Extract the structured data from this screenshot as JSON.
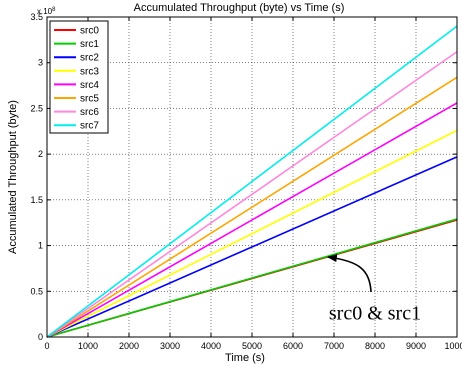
{
  "chart_data": {
    "type": "line",
    "title": "Accumulated Throughput (byte) vs Time (s)",
    "xlabel": "Time (s)",
    "ylabel": "Accumulated Throughput (byte)",
    "xlim": [
      0,
      10000
    ],
    "ylim": [
      0,
      3.5
    ],
    "y_exponent_label": "x 10",
    "y_exponent_power": "8",
    "x_ticks": [
      0,
      1000,
      2000,
      3000,
      4000,
      5000,
      6000,
      7000,
      8000,
      9000,
      10000
    ],
    "x_tick_labels": [
      "0",
      "1000",
      "2000",
      "3000",
      "4000",
      "5000",
      "6000",
      "7000",
      "8000",
      "9000",
      "10000"
    ],
    "y_ticks": [
      0,
      0.5,
      1,
      1.5,
      2,
      2.5,
      3,
      3.5
    ],
    "y_tick_labels": [
      "0",
      "0.5",
      "1",
      "1.5",
      "2",
      "2.5",
      "3",
      "3.5"
    ],
    "grid": true,
    "legend_position": "top-left",
    "series": [
      {
        "name": "src0",
        "color": "#ff0000",
        "x": [
          0,
          10000
        ],
        "y": [
          0,
          1.28
        ]
      },
      {
        "name": "src1",
        "color": "#00cc00",
        "x": [
          0,
          10000
        ],
        "y": [
          0,
          1.29
        ]
      },
      {
        "name": "src2",
        "color": "#0000ff",
        "x": [
          0,
          10000
        ],
        "y": [
          0,
          1.97
        ]
      },
      {
        "name": "src3",
        "color": "#ffff00",
        "x": [
          0,
          10000
        ],
        "y": [
          0,
          2.26
        ]
      },
      {
        "name": "src4",
        "color": "#ff00ff",
        "x": [
          0,
          10000
        ],
        "y": [
          0,
          2.56
        ]
      },
      {
        "name": "src5",
        "color": "#ffa500",
        "x": [
          0,
          10000
        ],
        "y": [
          0,
          2.84
        ]
      },
      {
        "name": "src6",
        "color": "#ff88dd",
        "x": [
          0,
          10000
        ],
        "y": [
          0,
          3.12
        ]
      },
      {
        "name": "src7",
        "color": "#00eeee",
        "x": [
          0,
          10000
        ],
        "y": [
          0,
          3.4
        ]
      }
    ],
    "annotation": {
      "text": "src0 & src1",
      "arrow_to_x": 6850,
      "arrow_to_y": 0.875,
      "text_x": 8000,
      "text_y": 0.27
    }
  }
}
